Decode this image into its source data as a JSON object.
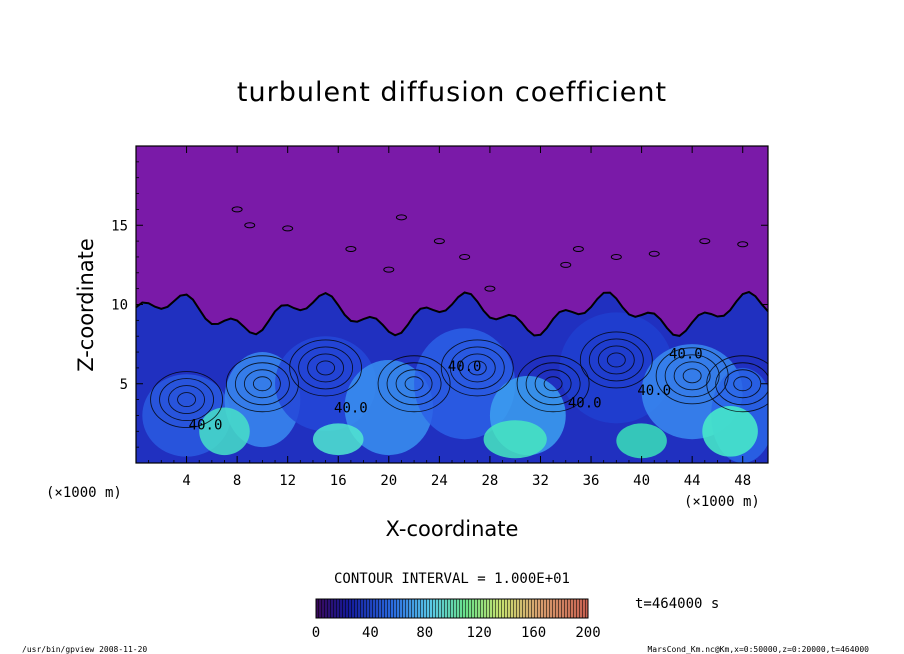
{
  "chart_data": {
    "type": "heatmap",
    "title": "turbulent diffusion coefficient",
    "xlabel": "X-coordinate",
    "ylabel": "Z-coordinate",
    "x_unit": "(×1000 m)",
    "y_unit": "(×1000 m)",
    "xlim": [
      0,
      50
    ],
    "ylim": [
      0,
      20
    ],
    "x_ticks": [
      "4",
      "8",
      "12",
      "16",
      "20",
      "24",
      "28",
      "32",
      "36",
      "40",
      "44",
      "48"
    ],
    "y_ticks": [
      "5",
      "10",
      "15"
    ],
    "contour_interval_label": "CONTOUR INTERVAL = 1.000E+01",
    "contour_labels": [
      "40.0",
      "40.0",
      "40.0",
      "40.0",
      "40.0",
      "40.0"
    ],
    "colorbar": {
      "range": [
        0,
        200
      ],
      "ticks": [
        "0",
        "40",
        "80",
        "120",
        "160",
        "200"
      ]
    },
    "time_label": "t=464000  s",
    "mixed_layer_top_approx": 10,
    "background_value": 0
  },
  "footer": {
    "left": "/usr/bin/gpview   2008-11-20",
    "right": "MarsCond_Km.nc@Km,x=0:50000,z=0:20000,t=464000"
  },
  "colors": {
    "background_field": "#7a1aa8",
    "low": "#1a2ab8",
    "mid": "#3a8af0",
    "high": "#48f0c8"
  }
}
